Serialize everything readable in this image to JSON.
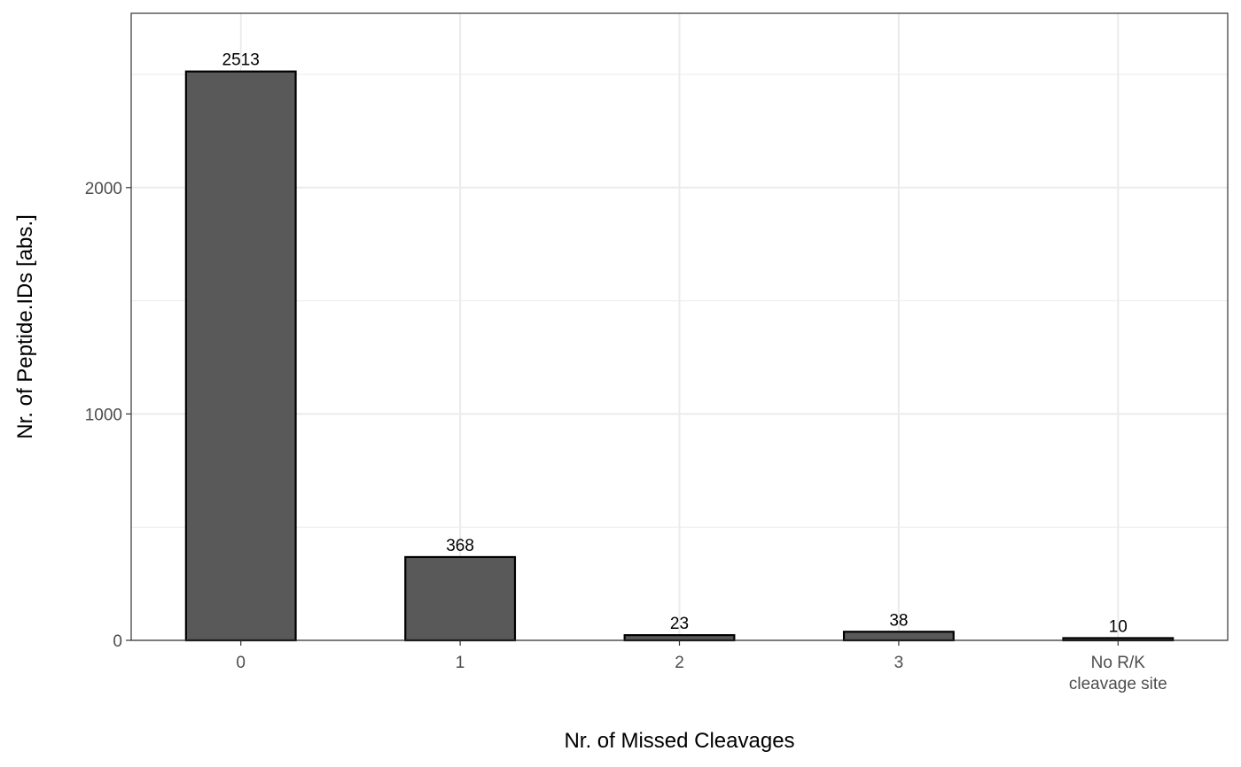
{
  "chart_data": {
    "type": "bar",
    "categories": [
      "0",
      "1",
      "2",
      "3",
      "No R/K\ncleavage site"
    ],
    "values": [
      2513,
      368,
      23,
      38,
      10
    ],
    "data_labels": [
      "2513",
      "368",
      "23",
      "38",
      "10"
    ],
    "xlabel": "Nr. of Missed Cleavages",
    "ylabel": "Nr. of Peptide.IDs [abs.]",
    "ylim": [
      0,
      2770
    ],
    "y_ticks": [
      0,
      1000,
      2000
    ],
    "y_tick_labels": [
      "0",
      "1000",
      "2000"
    ],
    "y_minor_ticks": [
      500,
      1500,
      2500
    ],
    "grid": true,
    "legend": "none",
    "colors": {
      "bar_fill": "#595959",
      "bar_stroke": "#000000",
      "grid": "#ebebeb",
      "panel_border": "#333333",
      "tick_text": "#4d4d4d"
    }
  }
}
